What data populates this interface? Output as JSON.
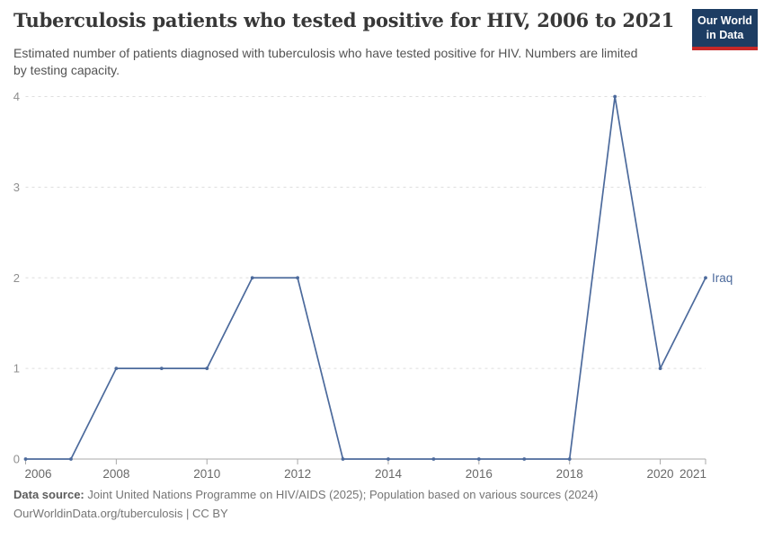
{
  "header": {
    "title": "Tuberculosis patients who tested positive for HIV, 2006 to 2021",
    "subtitle": "Estimated number of patients diagnosed with tuberculosis who have tested positive for HIV. Numbers are limited by testing capacity.",
    "logo": {
      "line1": "Our World",
      "line2": "in Data"
    }
  },
  "chart_data": {
    "type": "line",
    "title": "Tuberculosis patients who tested positive for HIV, 2006 to 2021",
    "entity": "Iraq",
    "x": [
      2006,
      2007,
      2008,
      2009,
      2010,
      2011,
      2012,
      2013,
      2014,
      2015,
      2016,
      2017,
      2018,
      2019,
      2020,
      2021
    ],
    "series": [
      {
        "name": "Iraq",
        "color": "#4c6a9c",
        "values": [
          0,
          0,
          1,
          1,
          1,
          2,
          2,
          0,
          0,
          0,
          0,
          0,
          0,
          4,
          1,
          2
        ]
      }
    ],
    "x_ticks": [
      2006,
      2008,
      2010,
      2012,
      2014,
      2016,
      2018,
      2020,
      2021
    ],
    "y_ticks": [
      0,
      1,
      2,
      3,
      4
    ],
    "xlim": [
      2006,
      2021
    ],
    "ylim": [
      0,
      4
    ],
    "grid": "horizontal-dashed",
    "legend": "end-of-line-label",
    "end_label": "Iraq",
    "xlabel": "",
    "ylabel": ""
  },
  "footer": {
    "source_label": "Data source:",
    "source_text": "Joint United Nations Programme on HIV/AIDS (2025); Population based on various sources (2024)",
    "url": "OurWorldinData.org/tuberculosis",
    "separator": " | ",
    "license": "CC BY"
  },
  "colors": {
    "line": "#4c6a9c",
    "logo_bg": "#1d3d63",
    "logo_stripe": "#c62828",
    "grid": "#dedede",
    "axis": "#a8a8a8",
    "y_tick_label": "#8f8f8f",
    "x_tick_label": "#696969"
  }
}
